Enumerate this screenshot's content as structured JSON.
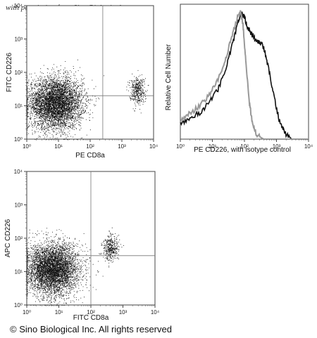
{
  "watermark": "with permission from Sino Biological",
  "copyright": "© Sino Biological Inc. All rights reserved",
  "chart_data": [
    {
      "type": "scatter",
      "xlabel": "PE CD8a",
      "ylabel": "FITC CD226",
      "xscale": "log",
      "yscale": "log",
      "xlim": [
        1,
        10000
      ],
      "ylim": [
        1,
        10000
      ],
      "x_ticks": [
        "10⁰",
        "10¹",
        "10²",
        "10³",
        "10⁴"
      ],
      "y_ticks": [
        "10⁰",
        "10¹",
        "10²",
        "10³",
        "10⁴"
      ],
      "quadrant_gate": {
        "x": 250,
        "y": 20
      },
      "point_color": "#111111",
      "populations": [
        {
          "center_x": 8,
          "center_y": 12,
          "approx_events": 5200
        },
        {
          "center_x": 3000,
          "center_y": 30,
          "approx_events": 420
        }
      ]
    },
    {
      "type": "line",
      "xlabel": "PE CD226,  with isotype control",
      "ylabel": "Relative Cell Number",
      "xscale": "log",
      "xlim": [
        1,
        10000
      ],
      "x_ticks": [
        "10⁰",
        "10¹",
        "10²",
        "10³",
        "10⁴"
      ],
      "series": [
        {
          "color": "#111111",
          "x": [
            1,
            2,
            4,
            8,
            15,
            25,
            40,
            60,
            80,
            100,
            130,
            170,
            220,
            300,
            400,
            550,
            800,
            1200,
            1800,
            3000,
            10000
          ],
          "y": [
            0.12,
            0.16,
            0.2,
            0.28,
            0.38,
            0.52,
            0.7,
            0.88,
            0.97,
            0.93,
            0.85,
            0.8,
            0.76,
            0.74,
            0.7,
            0.55,
            0.35,
            0.15,
            0.05,
            0.0,
            0.0
          ]
        },
        {
          "color": "#999999",
          "x": [
            1,
            2,
            4,
            8,
            15,
            25,
            40,
            60,
            75,
            90,
            110,
            140,
            180,
            250,
            400,
            10000
          ],
          "y": [
            0.14,
            0.2,
            0.25,
            0.34,
            0.45,
            0.6,
            0.78,
            0.93,
            0.97,
            0.88,
            0.6,
            0.3,
            0.1,
            0.03,
            0.0,
            0.0
          ]
        }
      ]
    },
    {
      "type": "scatter",
      "xlabel": "FITC CD8a",
      "ylabel": "APC CD226",
      "xscale": "log",
      "yscale": "log",
      "xlim": [
        1,
        10000
      ],
      "ylim": [
        1,
        10000
      ],
      "x_ticks": [
        "10⁰",
        "10¹",
        "10²",
        "10³",
        "10⁴"
      ],
      "y_ticks": [
        "10⁰",
        "10¹",
        "10²",
        "10³",
        "10⁴"
      ],
      "quadrant_gate": {
        "x": 100,
        "y": 30
      },
      "point_color": "#111111",
      "populations": [
        {
          "center_x": 6,
          "center_y": 12,
          "approx_events": 5200
        },
        {
          "center_x": 400,
          "center_y": 50,
          "approx_events": 400
        }
      ]
    }
  ]
}
